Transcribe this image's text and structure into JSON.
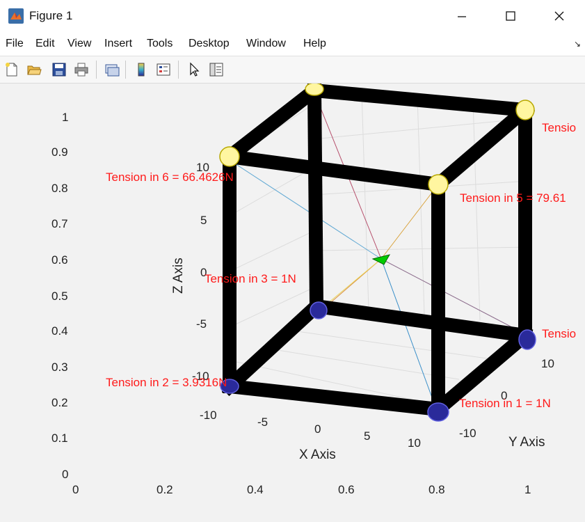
{
  "window": {
    "title": "Figure 1"
  },
  "menu": {
    "items": [
      "File",
      "Edit",
      "View",
      "Insert",
      "Tools",
      "Desktop",
      "Window",
      "Help"
    ]
  },
  "toolbar": {
    "buttons": [
      "new-figure-icon",
      "open-file-icon",
      "save-icon",
      "print-icon",
      "link-plot-icon",
      "insert-colorbar-icon",
      "insert-legend-icon",
      "edit-plot-icon",
      "property-inspector-icon"
    ]
  },
  "axes2d": {
    "y_ticks": [
      "1",
      "0.9",
      "0.8",
      "0.7",
      "0.6",
      "0.5",
      "0.4",
      "0.3",
      "0.2",
      "0.1",
      "0"
    ],
    "x_ticks": [
      "0",
      "0.2",
      "0.4",
      "0.6",
      "0.8",
      "1"
    ]
  },
  "axes3d": {
    "xlabel": "X Axis",
    "ylabel": "Y Axis",
    "zlabel": "Z Axis",
    "x_ticks": [
      "-10",
      "-5",
      "0",
      "5",
      "10"
    ],
    "y_ticks": [
      "-10",
      "0",
      "10"
    ],
    "z_ticks": [
      "10",
      "5",
      "0",
      "-5",
      "-10"
    ]
  },
  "labels": {
    "t6": "Tension in 6 = 66.4626N",
    "t5": "Tension in 5 = 79.61",
    "t3": "Tension in 3 = 1N",
    "t2": "Tension in 2 = 3.9316N",
    "t1": "Tension in 1 = 1N",
    "t_right_top": "Tensio",
    "t_right_bottom": "Tensio"
  },
  "colors": {
    "label": "#ff1a1a",
    "frame": "#000000",
    "payload": "#00cc00"
  }
}
